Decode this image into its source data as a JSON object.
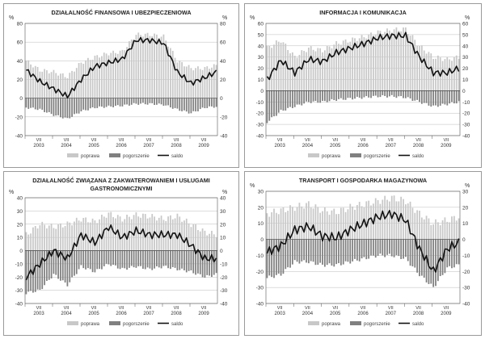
{
  "colors": {
    "poprawa": "#c8c8c8",
    "pogorszenie": "#808080",
    "saldo": "#111111",
    "grid": "#bbbbbb",
    "axis": "#555555"
  },
  "legend": {
    "poprawa": "poprawa",
    "pogorszenie": "pogorszenie",
    "saldo": "saldo"
  },
  "unit": "%",
  "year_labels": [
    "2003",
    "2004",
    "2005",
    "2006",
    "2007",
    "2008",
    "2009"
  ],
  "month_label": "VII",
  "chart_data": [
    {
      "type": "bar",
      "title_lines": [
        "DZIAŁALNOŚĆ FINANSOWA I UBEZPIECZENIOWA"
      ],
      "ylim": [
        -40,
        80
      ],
      "yticks": [
        -40,
        -20,
        0,
        20,
        40,
        60,
        80
      ],
      "x": [
        "2003-01",
        "2003-07",
        "2004-01",
        "2004-07",
        "2005-01",
        "2005-07",
        "2006-01",
        "2006-07",
        "2007-01",
        "2007-07",
        "2008-01",
        "2008-07",
        "2009-01",
        "2009-07",
        "2009-12"
      ],
      "series": [
        {
          "name": "poprawa",
          "values": [
            40,
            30,
            28,
            23,
            38,
            44,
            48,
            50,
            68,
            68,
            66,
            40,
            32,
            32,
            35
          ]
        },
        {
          "name": "pogorszenie",
          "values": [
            -10,
            -12,
            -18,
            -22,
            -14,
            -10,
            -9,
            -8,
            -6,
            -6,
            -7,
            -12,
            -16,
            -10,
            -9
          ]
        },
        {
          "name": "saldo",
          "values": [
            30,
            18,
            10,
            2,
            20,
            34,
            38,
            42,
            62,
            62,
            59,
            28,
            16,
            22,
            28
          ]
        }
      ]
    },
    {
      "type": "bar",
      "title_lines": [
        "INFORMACJA I KOMUNIKACJA"
      ],
      "ylim": [
        -40,
        60
      ],
      "yticks": [
        -40,
        -30,
        -20,
        -10,
        0,
        10,
        20,
        30,
        40,
        50,
        60
      ],
      "x": [
        "2003-01",
        "2003-07",
        "2004-01",
        "2004-07",
        "2005-01",
        "2005-07",
        "2006-01",
        "2006-07",
        "2007-01",
        "2007-07",
        "2008-01",
        "2008-07",
        "2009-01",
        "2009-07",
        "2009-12"
      ],
      "series": [
        {
          "name": "poprawa",
          "values": [
            38,
            45,
            30,
            38,
            36,
            42,
            45,
            48,
            52,
            54,
            55,
            40,
            30,
            28,
            30
          ]
        },
        {
          "name": "pogorszenie",
          "values": [
            -28,
            -18,
            -14,
            -10,
            -10,
            -8,
            -7,
            -6,
            -5,
            -5,
            -6,
            -10,
            -14,
            -12,
            -10
          ]
        },
        {
          "name": "saldo",
          "values": [
            10,
            27,
            16,
            28,
            26,
            34,
            38,
            42,
            47,
            49,
            49,
            30,
            16,
            16,
            20
          ]
        }
      ]
    },
    {
      "type": "bar",
      "title_lines": [
        "DZIAŁALNOŚĆ ZWIĄZANA Z ZAKWATEROWANIEM I USŁUGAMI",
        "GASTRONOMICZNYMI"
      ],
      "ylim": [
        -40,
        40
      ],
      "yticks": [
        -40,
        -30,
        -20,
        -10,
        0,
        10,
        20,
        30,
        40
      ],
      "x": [
        "2003-01",
        "2003-07",
        "2004-01",
        "2004-07",
        "2005-01",
        "2005-07",
        "2006-01",
        "2006-07",
        "2007-01",
        "2007-07",
        "2008-01",
        "2008-07",
        "2009-01",
        "2009-07",
        "2009-12"
      ],
      "series": [
        {
          "name": "poprawa",
          "values": [
            12,
            20,
            18,
            20,
            24,
            22,
            28,
            24,
            27,
            26,
            24,
            26,
            20,
            14,
            12
          ]
        },
        {
          "name": "pogorszenie",
          "values": [
            -32,
            -30,
            -18,
            -26,
            -12,
            -16,
            -10,
            -14,
            -12,
            -14,
            -12,
            -14,
            -16,
            -20,
            -18
          ]
        },
        {
          "name": "saldo",
          "values": [
            -20,
            -10,
            0,
            -6,
            12,
            6,
            18,
            10,
            15,
            12,
            12,
            12,
            4,
            -6,
            -6
          ]
        }
      ]
    },
    {
      "type": "bar",
      "title_lines": [
        "TRANSPORT I GOSPODARKA MAGAZYNOWA"
      ],
      "ylim": [
        -40,
        30
      ],
      "yticks": [
        -40,
        -30,
        -20,
        -10,
        0,
        10,
        20,
        30
      ],
      "x": [
        "2003-01",
        "2003-07",
        "2004-01",
        "2004-07",
        "2005-01",
        "2005-07",
        "2006-01",
        "2006-07",
        "2007-01",
        "2007-07",
        "2008-01",
        "2008-07",
        "2009-01",
        "2009-07",
        "2009-12"
      ],
      "series": [
        {
          "name": "poprawa",
          "values": [
            16,
            18,
            20,
            22,
            18,
            17,
            20,
            22,
            24,
            26,
            24,
            16,
            10,
            12,
            14
          ]
        },
        {
          "name": "pogorszenie",
          "values": [
            -24,
            -22,
            -14,
            -14,
            -16,
            -16,
            -14,
            -12,
            -10,
            -10,
            -12,
            -22,
            -30,
            -18,
            -16
          ]
        },
        {
          "name": "saldo",
          "values": [
            -8,
            -4,
            6,
            8,
            2,
            1,
            6,
            10,
            14,
            16,
            12,
            -6,
            -20,
            -6,
            -2
          ]
        }
      ]
    }
  ]
}
